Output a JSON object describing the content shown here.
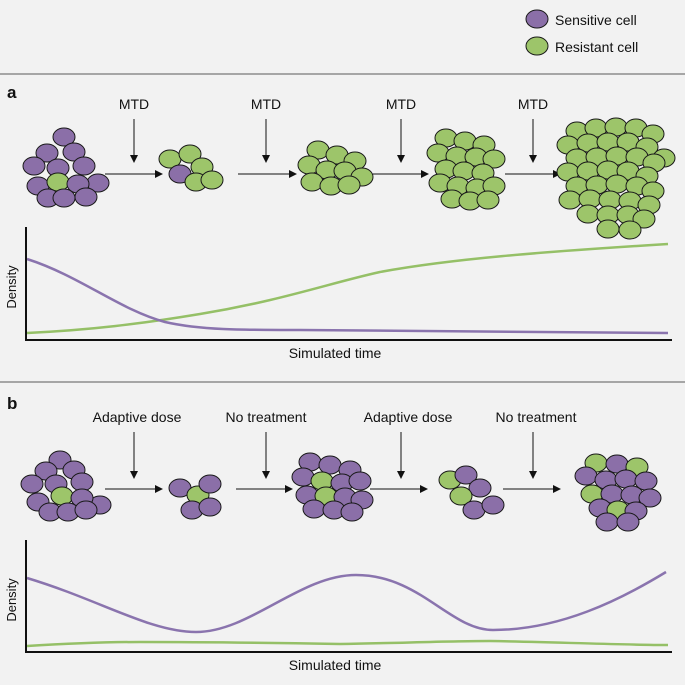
{
  "legend": {
    "sensitive_label": "Sensitive cell",
    "resistant_label": "Resistant cell"
  },
  "colors": {
    "sensitive": "#8b6fa8",
    "resistant": "#9dc56a",
    "sensitive_line": "#8a74ae",
    "resistant_line": "#95c067",
    "cell_stroke": "#1a1a1a",
    "divider": "#8c8c8c",
    "background": "#f2f2f2"
  },
  "panel_a": {
    "letter": "a",
    "treatments": [
      "MTD",
      "MTD",
      "MTD",
      "MTD"
    ],
    "ylabel": "Density",
    "xlabel": "Simulated time"
  },
  "panel_b": {
    "letter": "b",
    "treatments": [
      "Adaptive dose",
      "No treatment",
      "Adaptive dose",
      "No treatment"
    ],
    "ylabel": "Density",
    "xlabel": "Simulated time"
  }
}
